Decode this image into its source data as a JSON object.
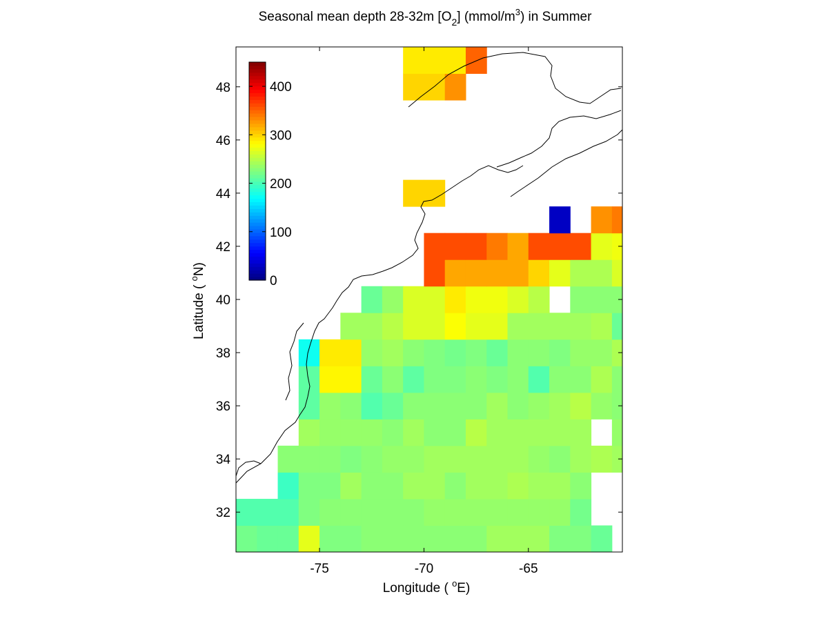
{
  "figure": {
    "title": {
      "main": "Seasonal mean depth 28-32m [O",
      "sub": "2",
      "mid": "] (mmol/m",
      "sup": "3",
      "end": ") in  Summer"
    },
    "xlabel": {
      "pre": "Longitude ( ",
      "sup": "o",
      "post": "E)"
    },
    "ylabel": {
      "pre": "Latitude ( ",
      "sup": "o",
      "post": "N)"
    }
  },
  "chart_data": {
    "type": "heatmap",
    "x_range": [
      -79,
      -60.5
    ],
    "y_range": [
      30.5,
      49.5
    ],
    "x_ticks": [
      -75,
      -70,
      -65
    ],
    "x_tick_labels": [
      "-75",
      "-70",
      "-65"
    ],
    "y_ticks": [
      32,
      34,
      36,
      38,
      40,
      42,
      44,
      46,
      48
    ],
    "y_tick_labels": [
      "32",
      "34",
      "36",
      "38",
      "40",
      "42",
      "44",
      "46",
      "48"
    ],
    "grid": false,
    "colormap": "jet",
    "color_range": [
      0,
      450
    ],
    "colorbar": {
      "position": "upper-left inside axes",
      "ticks": [
        0,
        100,
        200,
        300,
        400
      ],
      "tick_labels": [
        "0",
        "100",
        "200",
        "300",
        "400"
      ]
    },
    "cell_size_deg": 1,
    "lon_start": -79,
    "lat_start": 30.5,
    "grid_values": [
      [
        220,
        215,
        215,
        270,
        225,
        225,
        230,
        230,
        230,
        230,
        230,
        230,
        240,
        240,
        240,
        225,
        225,
        215,
        null
      ],
      [
        205,
        205,
        205,
        225,
        230,
        230,
        230,
        230,
        230,
        235,
        235,
        235,
        235,
        235,
        235,
        235,
        220,
        null,
        null
      ],
      [
        null,
        null,
        195,
        225,
        225,
        240,
        230,
        230,
        240,
        240,
        230,
        240,
        240,
        245,
        240,
        240,
        230,
        null,
        null
      ],
      [
        null,
        null,
        230,
        230,
        230,
        225,
        230,
        235,
        235,
        240,
        240,
        240,
        240,
        240,
        235,
        230,
        240,
        245,
        240
      ],
      [
        null,
        null,
        null,
        240,
        235,
        235,
        235,
        230,
        240,
        230,
        230,
        250,
        240,
        240,
        240,
        240,
        240,
        null,
        235
      ],
      [
        null,
        null,
        null,
        210,
        235,
        230,
        205,
        215,
        230,
        230,
        230,
        230,
        240,
        230,
        235,
        240,
        250,
        235,
        230
      ],
      [
        null,
        null,
        null,
        210,
        285,
        285,
        215,
        230,
        210,
        225,
        225,
        230,
        225,
        230,
        205,
        230,
        230,
        245,
        230
      ],
      [
        null,
        null,
        null,
        175,
        290,
        290,
        235,
        240,
        230,
        225,
        220,
        225,
        215,
        230,
        230,
        225,
        235,
        235,
        245
      ],
      [
        null,
        null,
        null,
        null,
        null,
        240,
        240,
        250,
        265,
        265,
        280,
        270,
        270,
        240,
        240,
        240,
        240,
        245,
        215
      ],
      [
        null,
        null,
        null,
        null,
        null,
        null,
        215,
        235,
        265,
        265,
        290,
        275,
        275,
        265,
        250,
        null,
        230,
        230,
        230
      ],
      [
        null,
        null,
        null,
        null,
        null,
        null,
        null,
        null,
        null,
        360,
        320,
        320,
        320,
        320,
        300,
        270,
        245,
        245,
        265
      ],
      [
        null,
        null,
        null,
        null,
        null,
        null,
        null,
        null,
        null,
        360,
        360,
        360,
        340,
        320,
        360,
        360,
        360,
        270,
        275
      ],
      [
        null,
        null,
        null,
        null,
        null,
        null,
        null,
        null,
        null,
        null,
        null,
        null,
        null,
        null,
        null,
        30,
        null,
        330,
        340
      ],
      [
        null,
        null,
        null,
        null,
        null,
        null,
        null,
        null,
        300,
        300,
        null,
        null,
        null,
        null,
        null,
        null,
        null,
        null,
        null
      ],
      [
        null,
        null,
        null,
        null,
        null,
        null,
        null,
        null,
        null,
        null,
        null,
        null,
        null,
        null,
        null,
        null,
        null,
        null,
        null
      ],
      [
        null,
        null,
        null,
        null,
        null,
        null,
        null,
        null,
        null,
        null,
        null,
        null,
        null,
        null,
        null,
        null,
        null,
        null,
        null
      ],
      [
        null,
        null,
        null,
        null,
        null,
        null,
        null,
        null,
        null,
        null,
        null,
        null,
        null,
        null,
        null,
        null,
        null,
        null,
        null
      ],
      [
        null,
        null,
        null,
        null,
        null,
        null,
        null,
        null,
        300,
        300,
        330,
        null,
        null,
        null,
        null,
        null,
        null,
        null,
        null
      ],
      [
        null,
        null,
        null,
        null,
        null,
        null,
        null,
        null,
        290,
        290,
        290,
        350,
        null,
        null,
        null,
        null,
        null,
        null,
        null
      ]
    ]
  }
}
